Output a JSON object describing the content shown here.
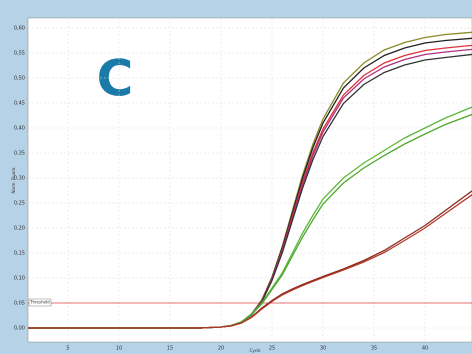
{
  "chart_data": {
    "type": "line",
    "panel_label": "C",
    "x_label": "Cycle",
    "y_label": "Norm. Fluoro.",
    "threshold": {
      "value": 0.05,
      "label": "Threshold",
      "color": "#e04040"
    },
    "x": [
      1,
      5,
      10,
      15,
      18,
      20,
      21,
      22,
      23,
      24,
      25,
      26,
      27,
      28,
      29,
      30,
      32,
      34,
      36,
      38,
      40,
      42,
      45
    ],
    "series": [
      {
        "color": "#8a8a2a",
        "values": [
          0,
          0,
          0,
          0,
          0,
          0.002,
          0.005,
          0.012,
          0.028,
          0.056,
          0.102,
          0.163,
          0.235,
          0.306,
          0.367,
          0.418,
          0.49,
          0.53,
          0.556,
          0.571,
          0.581,
          0.587,
          0.592
        ]
      },
      {
        "color": "#222222",
        "values": [
          0,
          0,
          0,
          0,
          0,
          0.002,
          0.005,
          0.012,
          0.028,
          0.055,
          0.1,
          0.16,
          0.23,
          0.3,
          0.36,
          0.41,
          0.48,
          0.52,
          0.545,
          0.56,
          0.57,
          0.575,
          0.58
        ]
      },
      {
        "color": "#e0303a",
        "values": [
          0,
          0,
          0,
          0,
          0,
          0.002,
          0.005,
          0.012,
          0.027,
          0.054,
          0.098,
          0.156,
          0.224,
          0.292,
          0.35,
          0.398,
          0.466,
          0.505,
          0.53,
          0.545,
          0.555,
          0.56,
          0.566
        ]
      },
      {
        "color": "#b03080",
        "values": [
          0,
          0,
          0,
          0,
          0,
          0.002,
          0.005,
          0.012,
          0.027,
          0.053,
          0.097,
          0.154,
          0.22,
          0.287,
          0.344,
          0.392,
          0.46,
          0.498,
          0.522,
          0.537,
          0.547,
          0.552,
          0.558
        ]
      },
      {
        "color": "#333333",
        "values": [
          0,
          0,
          0,
          0,
          0,
          0.002,
          0.005,
          0.012,
          0.026,
          0.052,
          0.095,
          0.15,
          0.215,
          0.28,
          0.336,
          0.383,
          0.449,
          0.487,
          0.511,
          0.526,
          0.536,
          0.541,
          0.548
        ]
      },
      {
        "color": "#5cb83a",
        "values": [
          0,
          0,
          0,
          0,
          0,
          0.002,
          0.005,
          0.012,
          0.028,
          0.05,
          0.08,
          0.11,
          0.15,
          0.19,
          0.225,
          0.258,
          0.3,
          0.33,
          0.355,
          0.38,
          0.4,
          0.42,
          0.445
        ]
      },
      {
        "color": "#4ea830",
        "values": [
          0,
          0,
          0,
          0,
          0,
          0.002,
          0.005,
          0.012,
          0.027,
          0.048,
          0.077,
          0.106,
          0.144,
          0.182,
          0.216,
          0.248,
          0.29,
          0.32,
          0.345,
          0.368,
          0.388,
          0.407,
          0.43
        ]
      },
      {
        "color": "#8b2a1a",
        "values": [
          0,
          0,
          0,
          0,
          0,
          0.002,
          0.004,
          0.01,
          0.022,
          0.04,
          0.055,
          0.068,
          0.078,
          0.087,
          0.095,
          0.103,
          0.118,
          0.135,
          0.155,
          0.18,
          0.205,
          0.235,
          0.28
        ]
      },
      {
        "color": "#b03828",
        "values": [
          0,
          0,
          0,
          0,
          0,
          0.002,
          0.004,
          0.01,
          0.021,
          0.038,
          0.053,
          0.066,
          0.076,
          0.085,
          0.093,
          0.101,
          0.116,
          0.132,
          0.151,
          0.175,
          0.2,
          0.229,
          0.272
        ]
      }
    ],
    "xlim": [
      1,
      45
    ],
    "ylim": [
      -0.028,
      0.62
    ],
    "xticks": [
      5,
      10,
      15,
      20,
      25,
      30,
      35,
      40
    ],
    "yticks": [
      {
        "value": 0,
        "label": "0,00"
      },
      {
        "value": 0.05,
        "label": "0,05"
      },
      {
        "value": 0.1,
        "label": "0,10"
      },
      {
        "value": 0.15,
        "label": "0,15"
      },
      {
        "value": 0.2,
        "label": "0,20"
      },
      {
        "value": 0.25,
        "label": "0,25"
      },
      {
        "value": 0.3,
        "label": "0,30"
      },
      {
        "value": 0.35,
        "label": "0,35"
      },
      {
        "value": 0.4,
        "label": "0,40"
      },
      {
        "value": 0.45,
        "label": "0,45"
      },
      {
        "value": 0.5,
        "label": "0,50"
      },
      {
        "value": 0.55,
        "label": "0,55"
      },
      {
        "value": 0.6,
        "label": "0,60"
      }
    ],
    "grid": true
  }
}
